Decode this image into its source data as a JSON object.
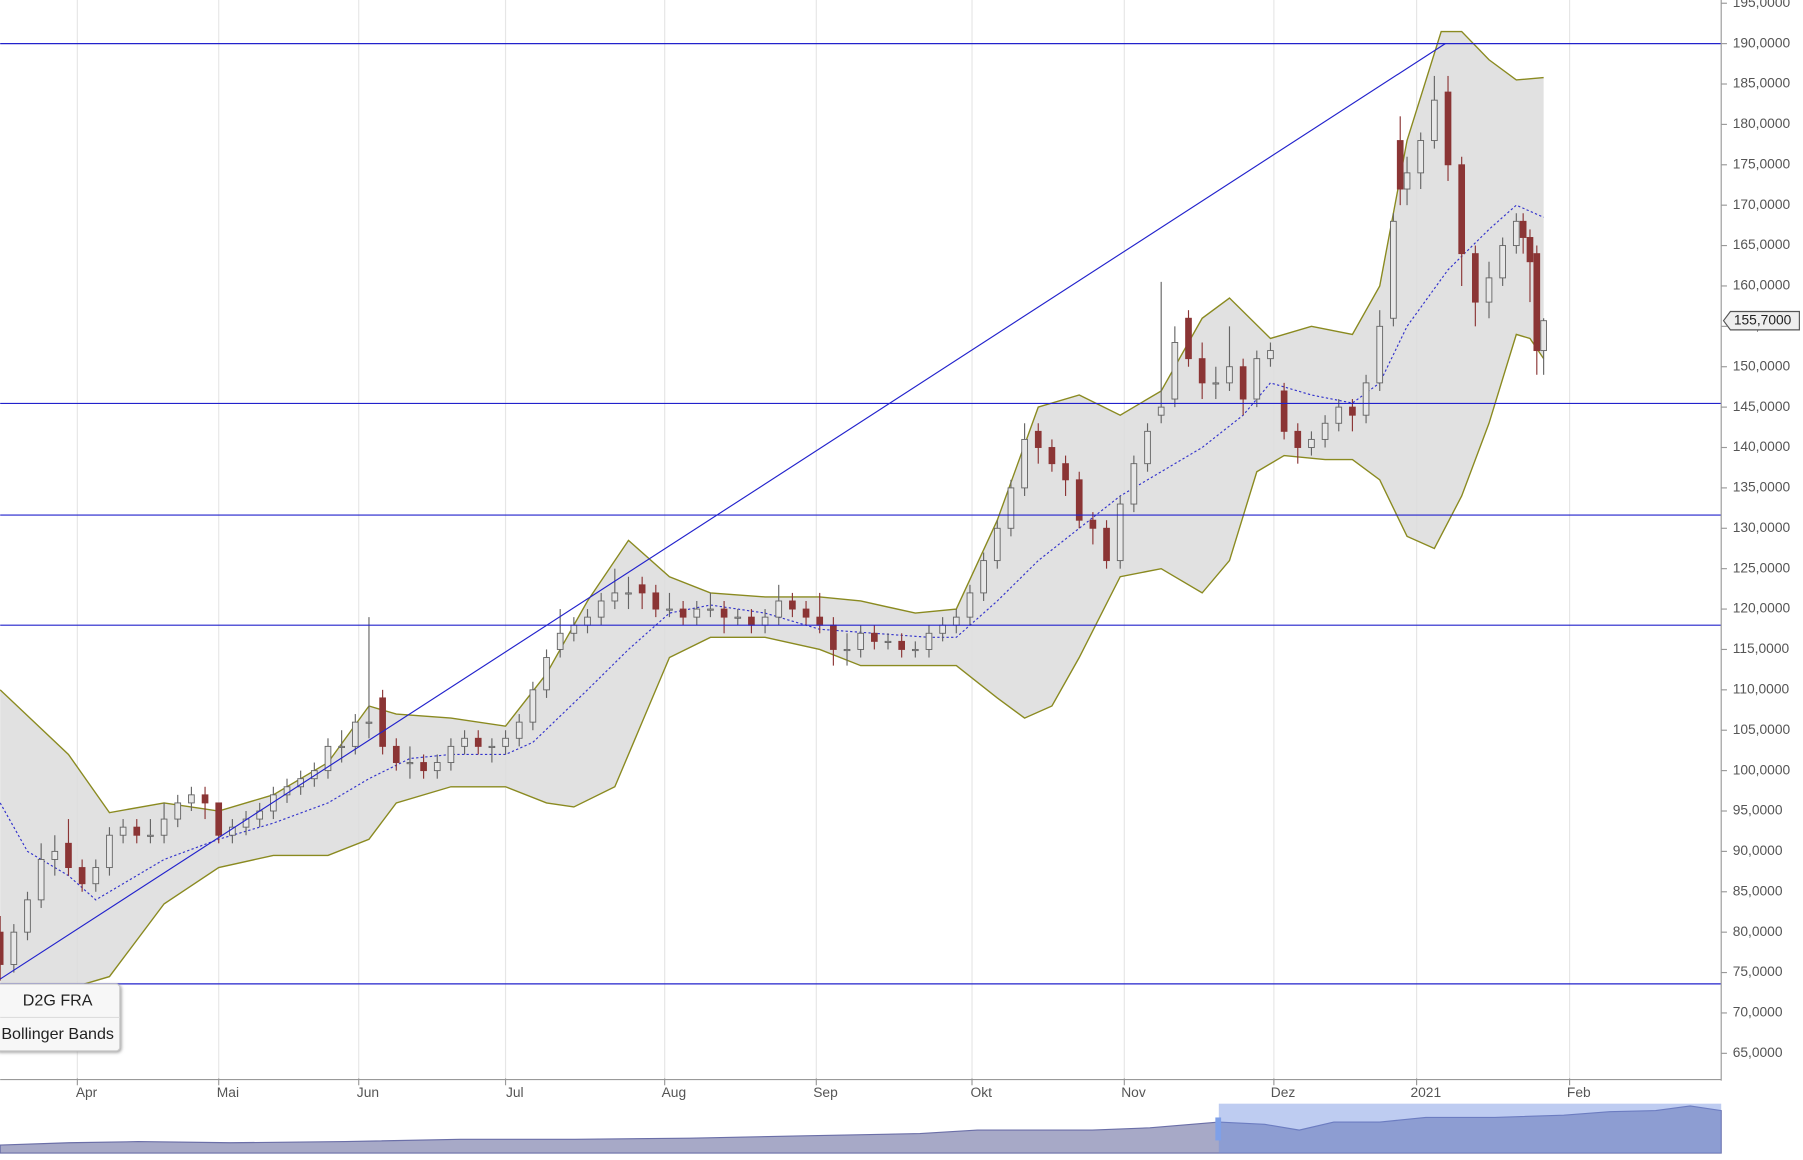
{
  "chart_data": {
    "type": "candlestick",
    "legend": [
      "D2G FRA",
      "Bollinger Bands"
    ],
    "xlim": [
      0,
      252
    ],
    "ylim": [
      61.9,
      195.4
    ],
    "xticks": [
      {
        "value": 11.3,
        "label": "Apr"
      },
      {
        "value": 32,
        "label": "Mai"
      },
      {
        "value": 52.5,
        "label": "Jun"
      },
      {
        "value": 74,
        "label": "Jul"
      },
      {
        "value": 97.3,
        "label": "Aug"
      },
      {
        "value": 119.5,
        "label": "Sep"
      },
      {
        "value": 142.3,
        "label": "Okt"
      },
      {
        "value": 164.6,
        "label": "Nov"
      },
      {
        "value": 186.5,
        "label": "Dez"
      },
      {
        "value": 207.4,
        "label": "2021"
      },
      {
        "value": 229.8,
        "label": "Feb"
      }
    ],
    "yticks": [
      {
        "value": 65,
        "label": "65,0000"
      },
      {
        "value": 70,
        "label": "70,0000"
      },
      {
        "value": 75,
        "label": "75,0000"
      },
      {
        "value": 80,
        "label": "80,0000"
      },
      {
        "value": 85,
        "label": "85,0000"
      },
      {
        "value": 90,
        "label": "90,0000"
      },
      {
        "value": 95,
        "label": "95,0000"
      },
      {
        "value": 100,
        "label": "100,0000"
      },
      {
        "value": 105,
        "label": "105,0000"
      },
      {
        "value": 110,
        "label": "110,0000"
      },
      {
        "value": 115,
        "label": "115,0000"
      },
      {
        "value": 120,
        "label": "120,0000"
      },
      {
        "value": 125,
        "label": "125,0000"
      },
      {
        "value": 130,
        "label": "130,0000"
      },
      {
        "value": 135,
        "label": "135,0000"
      },
      {
        "value": 140,
        "label": "140,0000"
      },
      {
        "value": 145,
        "label": "145,0000"
      },
      {
        "value": 150,
        "label": "150,0000"
      },
      {
        "value": 155,
        "label": "155,0000"
      },
      {
        "value": 160,
        "label": "160,0000"
      },
      {
        "value": 165,
        "label": "165,0000"
      },
      {
        "value": 170,
        "label": "170,0000"
      },
      {
        "value": 175,
        "label": "175,0000"
      },
      {
        "value": 180,
        "label": "180,0000"
      },
      {
        "value": 185,
        "label": "185,0000"
      },
      {
        "value": 190,
        "label": "190,0000"
      },
      {
        "value": 195,
        "label": "195,0000"
      }
    ],
    "grid": true,
    "up_color": "#e8e8e8",
    "down_color": "#8b3535",
    "wick_color": "#666666",
    "x": [
      0,
      2,
      4,
      6,
      8,
      10,
      12,
      14,
      16,
      18,
      20,
      22,
      24,
      26,
      28,
      30,
      32,
      34,
      36,
      38,
      40,
      42,
      44,
      46,
      48,
      50,
      52,
      54,
      56,
      58,
      60,
      62,
      64,
      66,
      68,
      70,
      72,
      74,
      76,
      78,
      80,
      82,
      84,
      86,
      88,
      90,
      92,
      94,
      96,
      98,
      100,
      102,
      104,
      106,
      108,
      110,
      112,
      114,
      116,
      118,
      120,
      122,
      124,
      126,
      128,
      130,
      132,
      134,
      136,
      138,
      140,
      142,
      144,
      146,
      148,
      150,
      152,
      154,
      156,
      158,
      160,
      162,
      164,
      166,
      168,
      170,
      172,
      174,
      176,
      178,
      180,
      182,
      184,
      186,
      188,
      190,
      192,
      194,
      196,
      198,
      200,
      202,
      204,
      205,
      206,
      208,
      210,
      212,
      214,
      216,
      218,
      220,
      222,
      223,
      224,
      225,
      226
    ],
    "ohlc": [
      [
        80,
        82,
        74,
        76
      ],
      [
        76,
        81,
        75,
        80
      ],
      [
        80,
        85,
        79,
        84
      ],
      [
        84,
        91,
        83,
        89
      ],
      [
        89,
        92,
        87,
        90
      ],
      [
        91,
        94,
        87,
        88
      ],
      [
        88,
        89,
        85,
        86
      ],
      [
        86,
        89,
        85,
        88
      ],
      [
        88,
        93,
        87,
        92
      ],
      [
        92,
        94,
        91,
        93
      ],
      [
        93,
        94,
        91,
        92
      ],
      [
        92,
        94,
        91,
        92
      ],
      [
        92,
        96,
        91,
        94
      ],
      [
        94,
        97,
        93,
        96
      ],
      [
        96,
        98,
        95,
        97
      ],
      [
        97,
        98,
        94,
        96
      ],
      [
        96,
        96,
        91,
        92
      ],
      [
        92,
        94,
        91,
        93
      ],
      [
        93,
        95,
        92,
        94
      ],
      [
        94,
        96,
        93,
        95
      ],
      [
        95,
        98,
        94,
        97
      ],
      [
        97,
        99,
        96,
        98
      ],
      [
        98,
        100,
        97,
        99
      ],
      [
        99,
        101,
        98,
        100
      ],
      [
        100,
        104,
        99,
        103
      ],
      [
        103,
        105,
        101,
        103
      ],
      [
        103,
        107,
        102,
        106
      ],
      [
        106,
        119,
        104,
        106
      ],
      [
        109,
        110,
        102,
        103
      ],
      [
        103,
        104,
        100,
        101
      ],
      [
        101,
        103,
        99,
        101
      ],
      [
        101,
        102,
        99,
        100
      ],
      [
        100,
        102,
        99,
        101
      ],
      [
        101,
        104,
        100,
        103
      ],
      [
        103,
        105,
        102,
        104
      ],
      [
        104,
        105,
        102,
        103
      ],
      [
        103,
        104,
        101,
        103
      ],
      [
        103,
        105,
        102,
        104
      ],
      [
        104,
        107,
        103,
        106
      ],
      [
        106,
        111,
        105,
        110
      ],
      [
        110,
        115,
        109,
        114
      ],
      [
        115,
        120,
        114,
        117
      ],
      [
        117,
        119,
        116,
        118
      ],
      [
        118,
        120,
        117,
        119
      ],
      [
        119,
        122,
        118,
        121
      ],
      [
        121,
        125,
        120,
        122
      ],
      [
        122,
        124,
        120,
        122
      ],
      [
        123,
        124,
        120,
        122
      ],
      [
        122,
        123,
        119,
        120
      ],
      [
        120,
        122,
        119,
        120
      ],
      [
        120,
        121,
        118,
        119
      ],
      [
        119,
        121,
        118,
        120
      ],
      [
        120,
        122,
        119,
        120
      ],
      [
        120,
        121,
        117,
        119
      ],
      [
        119,
        120,
        118,
        119
      ],
      [
        119,
        120,
        117,
        118
      ],
      [
        118,
        120,
        117,
        119
      ],
      [
        119,
        123,
        118,
        121
      ],
      [
        121,
        122,
        119,
        120
      ],
      [
        120,
        121,
        118,
        119
      ],
      [
        119,
        122,
        117,
        118
      ],
      [
        118,
        119,
        113,
        115
      ],
      [
        115,
        117,
        113,
        115
      ],
      [
        115,
        118,
        114,
        117
      ],
      [
        117,
        118,
        115,
        116
      ],
      [
        116,
        117,
        115,
        116
      ],
      [
        116,
        117,
        114,
        115
      ],
      [
        115,
        116,
        114,
        115
      ],
      [
        115,
        118,
        114,
        117
      ],
      [
        117,
        119,
        116,
        118
      ],
      [
        118,
        120,
        117,
        119
      ],
      [
        119,
        123,
        118,
        122
      ],
      [
        122,
        127,
        121,
        126
      ],
      [
        126,
        131,
        125,
        130
      ],
      [
        130,
        136,
        129,
        135
      ],
      [
        135,
        143,
        134,
        141
      ],
      [
        142,
        143,
        138,
        140
      ],
      [
        140,
        141,
        137,
        138
      ],
      [
        138,
        139,
        134,
        136
      ],
      [
        136,
        137,
        130,
        131
      ],
      [
        131,
        132,
        128,
        130
      ],
      [
        130,
        131,
        125,
        126
      ],
      [
        126,
        134,
        125,
        133
      ],
      [
        133,
        139,
        132,
        138
      ],
      [
        138,
        143,
        137,
        142
      ],
      [
        144,
        160.5,
        143,
        145
      ],
      [
        146,
        155,
        145,
        153
      ],
      [
        156,
        157,
        150,
        151
      ],
      [
        151,
        153,
        146,
        148
      ],
      [
        148,
        150,
        146,
        148
      ],
      [
        148,
        155,
        147,
        150
      ],
      [
        150,
        151,
        144,
        146
      ],
      [
        146,
        152,
        145,
        151
      ],
      [
        151,
        153,
        150,
        152
      ],
      [
        147,
        148,
        141,
        142
      ],
      [
        142,
        143,
        138,
        140
      ],
      [
        140,
        142,
        139,
        141
      ],
      [
        141,
        144,
        140,
        143
      ],
      [
        143,
        146,
        142,
        145
      ],
      [
        145,
        146,
        142,
        144
      ],
      [
        144,
        149,
        143,
        148
      ],
      [
        148,
        157,
        147,
        155
      ],
      [
        156,
        169,
        155,
        168
      ],
      [
        178,
        181,
        170,
        172
      ],
      [
        172,
        176,
        170,
        174
      ],
      [
        174,
        179,
        172,
        178
      ],
      [
        178,
        186,
        177,
        183
      ],
      [
        184,
        186,
        173,
        175
      ],
      [
        175,
        176,
        160,
        164
      ],
      [
        164,
        165,
        155,
        158
      ],
      [
        158,
        163,
        156,
        161
      ],
      [
        161,
        166,
        160,
        165
      ],
      [
        165,
        169,
        164,
        168
      ],
      [
        168,
        169,
        164,
        166
      ],
      [
        166,
        167,
        158,
        163
      ],
      [
        164,
        165,
        149,
        152
      ],
      [
        152,
        156,
        149,
        155.7
      ]
    ],
    "bollinger": {
      "band_color": "#dcdcdc",
      "edge_color": "#8a8a20",
      "middle_color": "#3333cc",
      "upper": {
        "x": [
          0,
          10,
          16,
          24,
          32,
          40,
          48,
          54,
          58,
          66,
          74,
          80,
          86,
          92,
          98,
          104,
          112,
          120,
          126,
          134,
          140,
          146,
          152,
          158,
          164,
          170,
          176,
          180,
          186,
          192,
          198,
          202,
          206,
          211,
          214,
          218,
          222,
          226
        ],
        "values": [
          110,
          102,
          94.8,
          96,
          95,
          97,
          101,
          108,
          107,
          106.5,
          105.5,
          112,
          121,
          128.5,
          124,
          122,
          121.5,
          121.5,
          121,
          119.5,
          120,
          131,
          145,
          146.5,
          144,
          147,
          156,
          158.5,
          153.5,
          155,
          154,
          160,
          178,
          191.5,
          191.5,
          188,
          185.5,
          185.8
        ]
      },
      "middle": {
        "x": [
          0,
          4,
          10,
          14,
          18,
          24,
          32,
          40,
          48,
          54,
          60,
          66,
          74,
          78,
          86,
          92,
          98,
          104,
          112,
          120,
          128,
          136,
          140,
          146,
          152,
          158,
          164,
          170,
          176,
          182,
          186,
          192,
          198,
          202,
          206,
          212,
          218,
          222,
          226
        ],
        "values": [
          96,
          90,
          87,
          84,
          86,
          89,
          91.5,
          93.5,
          96,
          99,
          101.5,
          102,
          102,
          103.5,
          110,
          115,
          119.5,
          120.5,
          119.5,
          117.5,
          117,
          116.5,
          116.5,
          121,
          126,
          130,
          134,
          137,
          140,
          144,
          148,
          146.5,
          145.5,
          148,
          155,
          162,
          167,
          170,
          168.5
        ]
      },
      "lower": {
        "x": [
          0,
          10,
          16,
          24,
          32,
          40,
          48,
          54,
          58,
          66,
          74,
          80,
          84,
          90,
          94,
          98,
          104,
          112,
          120,
          126,
          134,
          140,
          146,
          150,
          154,
          158,
          164,
          170,
          176,
          180,
          184,
          188,
          194,
          198,
          202,
          206,
          210,
          214,
          218,
          222,
          224,
          226
        ],
        "values": [
          72,
          73,
          74.5,
          83.5,
          88,
          89.5,
          89.5,
          91.5,
          96,
          98,
          98,
          96,
          95.5,
          98,
          106,
          114,
          116.5,
          116.5,
          115,
          113,
          113,
          113,
          109,
          106.5,
          108,
          114,
          124,
          125,
          122,
          126,
          137,
          139,
          138.5,
          138.5,
          136,
          129,
          127.5,
          134,
          143,
          154,
          153.5,
          151
        ]
      }
    },
    "levels": [
      190,
      145.45,
      131.64,
      118,
      73.6
    ],
    "level_color": "#2222cc",
    "trendline": {
      "x": [
        0,
        211.6
      ],
      "values": [
        74.2,
        190
      ]
    },
    "last_price": {
      "value": 155.7,
      "label": "155,7000"
    }
  }
}
